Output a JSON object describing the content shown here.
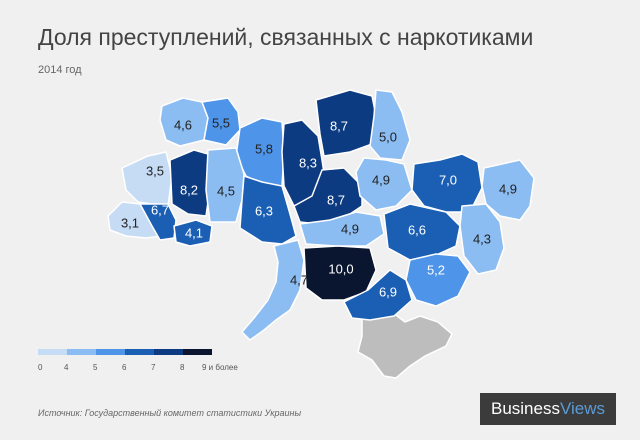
{
  "title": "Доля преступлений, связанных с наркотиками",
  "subtitle": "2014 год",
  "source": "Источник:  Государственный комитет статистики Украины",
  "brand": {
    "part1": "Business",
    "part2": "Views"
  },
  "legend": {
    "colors": [
      "#c6dcf5",
      "#8bbcf2",
      "#4e94e8",
      "#1a5fb4",
      "#0d3b82",
      "#122a56",
      "#0a1630"
    ],
    "ticks": [
      "0",
      "4",
      "5",
      "6",
      "7",
      "8",
      "9 и более"
    ]
  },
  "regions": [
    {
      "id": "volyn",
      "label": "4,6"
    },
    {
      "id": "rivne",
      "label": "5,5"
    },
    {
      "id": "zhytomyr",
      "label": "5,8"
    },
    {
      "id": "kyiv",
      "label": "8,3"
    },
    {
      "id": "chernihiv",
      "label": "8,7"
    },
    {
      "id": "sumy",
      "label": "5,0"
    },
    {
      "id": "lviv",
      "label": "3,5"
    },
    {
      "id": "ternopil",
      "label": "8,2"
    },
    {
      "id": "khmelnytskyi",
      "label": "4,5"
    },
    {
      "id": "vinnytsia",
      "label": "6,3"
    },
    {
      "id": "cherkasy",
      "label": "8,7"
    },
    {
      "id": "poltava",
      "label": "4,9"
    },
    {
      "id": "kharkiv",
      "label": "7,0"
    },
    {
      "id": "luhansk",
      "label": "4,9"
    },
    {
      "id": "zakarpattia",
      "label": "3,1"
    },
    {
      "id": "ivano-frankivsk",
      "label": "6,7"
    },
    {
      "id": "chernivtsi",
      "label": "4,1"
    },
    {
      "id": "kirovohrad",
      "label": "4,9"
    },
    {
      "id": "dnipropetrovsk",
      "label": "6,6"
    },
    {
      "id": "donetsk",
      "label": "4,3"
    },
    {
      "id": "odesa",
      "label": "4,7"
    },
    {
      "id": "mykolaiv",
      "label": "10,0"
    },
    {
      "id": "zaporizhzhia",
      "label": "5,2"
    },
    {
      "id": "kherson",
      "label": "6,9"
    }
  ]
}
